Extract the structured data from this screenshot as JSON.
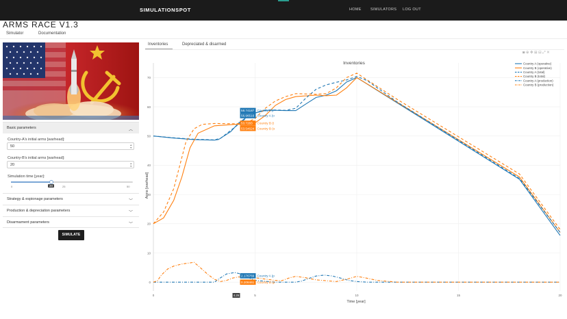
{
  "navbar": {
    "brand": "SIMULATIONSPOT",
    "links": [
      "HOME",
      "SIMULATORS",
      "LOG OUT"
    ],
    "accent_color": "#2a9d8f"
  },
  "page": {
    "title": "ARMS RACE V1.3",
    "tabs": [
      "Simulator",
      "Documentation"
    ]
  },
  "sidebar": {
    "hero_image": "flag-rocket-launch-illustration",
    "basic_header": "Basic parameters",
    "field_a_label": "Country-A's initial arms [warhead]:",
    "field_a_value": "50",
    "field_b_label": "Country-B's initial arms [warhead]:",
    "field_b_value": "20",
    "slider_label": "Simulation time [year]:",
    "slider_value": "20",
    "slider_ticks": [
      "0",
      "25",
      "50"
    ],
    "slider_fraction": 0.4,
    "sections": [
      "Strategy & espionage parameters",
      "Production & depreciation parameters",
      "Disarmament parameters"
    ],
    "simulate_label": "SIMULATE"
  },
  "chart_tabs": [
    "Inventories",
    "Depreciated & disarmed"
  ],
  "modebar_icons": [
    "camera-icon",
    "zoom-icon",
    "pan-icon",
    "zoom-in-icon",
    "zoom-out-icon",
    "autoscale-icon",
    "reset-icon"
  ],
  "chart_data": {
    "type": "line",
    "title": "Inventories",
    "xlabel": "Time [year]",
    "ylabel": "Arms [warhead]",
    "xlim": [
      0,
      20
    ],
    "ylim": [
      -3,
      75
    ],
    "xticks": [
      0,
      5,
      10,
      15,
      20
    ],
    "yticks": [
      0,
      10,
      20,
      30,
      40,
      50,
      60,
      70
    ],
    "legend": "top-right",
    "grid": true,
    "series": [
      {
        "name": "Country A (operative)",
        "color": "#1f77b4",
        "dash": "solid",
        "x": [
          0,
          1,
          2,
          3,
          3.2,
          3.8,
          4.2,
          4.8,
          5.5,
          6,
          6.5,
          7,
          7.5,
          8,
          8.5,
          9,
          9.5,
          10,
          12,
          14,
          16,
          18,
          20
        ],
        "y": [
          50,
          49.3,
          48.8,
          48.6,
          48.8,
          51.5,
          54.5,
          57.5,
          58.8,
          58.8,
          58.7,
          58.7,
          61,
          63.2,
          64,
          65.5,
          68.5,
          70,
          61.3,
          52.6,
          43.9,
          35.2,
          16
        ]
      },
      {
        "name": "Country B (operative)",
        "color": "#ff7f0e",
        "dash": "solid",
        "x": [
          0,
          0.5,
          1,
          1.4,
          1.8,
          2.2,
          3,
          4,
          4.5,
          5,
          5.5,
          6,
          6.5,
          7,
          8,
          8.5,
          9,
          9.5,
          10,
          12,
          14,
          16,
          18,
          20
        ],
        "y": [
          20,
          22,
          28,
          36,
          46,
          51,
          53.5,
          54,
          54,
          54.5,
          57,
          60.5,
          62.5,
          63.5,
          64,
          63.8,
          64,
          66.5,
          70,
          61.5,
          53,
          44.5,
          36,
          17
        ]
      },
      {
        "name": "Country A (total)",
        "color": "#1f77b4",
        "dash": "dash",
        "x": [
          0,
          1,
          2,
          3,
          3.3,
          4,
          4.8,
          5.5,
          6,
          6.5,
          7,
          7.5,
          8,
          8.5,
          9,
          9.5,
          10,
          10.5,
          12,
          14,
          16,
          18,
          20
        ],
        "y": [
          50,
          49.4,
          48.9,
          48.7,
          49.2,
          53,
          57.5,
          58.9,
          58.9,
          58.8,
          59.5,
          63,
          66,
          67.5,
          68.4,
          69.2,
          70.4,
          69,
          61.6,
          52.9,
          44.2,
          35.5,
          17
        ]
      },
      {
        "name": "Country B (total)",
        "color": "#ff7f0e",
        "dash": "dash",
        "x": [
          0,
          0.5,
          1,
          1.3,
          1.6,
          2,
          2.4,
          3,
          4,
          4.5,
          5,
          5.5,
          6,
          6.5,
          7,
          8,
          8.5,
          9,
          9.5,
          10,
          12,
          14,
          16,
          18,
          20
        ],
        "y": [
          20,
          24,
          32,
          40,
          48,
          52.5,
          54,
          54.3,
          54.2,
          54.3,
          56,
          59.5,
          62,
          63.5,
          64.5,
          64.3,
          64.5,
          66.5,
          70,
          71.5,
          62.5,
          54,
          45.5,
          37,
          18
        ]
      },
      {
        "name": "Country A (production)",
        "color": "#1f77b4",
        "dash": "dashdot",
        "x": [
          0,
          2,
          3,
          3.3,
          3.6,
          4,
          4.3,
          4.6,
          5,
          6,
          7,
          7.3,
          7.7,
          8,
          8.4,
          8.8,
          9.2,
          9.6,
          10,
          10.5,
          11,
          12,
          20
        ],
        "y": [
          0,
          0,
          0,
          1.5,
          2.8,
          3.3,
          2.8,
          1.8,
          0.6,
          0,
          0,
          0.4,
          1.4,
          2.1,
          2.4,
          2.1,
          1.4,
          0.6,
          0.2,
          0,
          0,
          0,
          0
        ]
      },
      {
        "name": "Country B (production)",
        "color": "#ff7f0e",
        "dash": "dashdot",
        "x": [
          0,
          0.2,
          0.4,
          0.7,
          1,
          1.4,
          1.7,
          2,
          2.3,
          2.7,
          3,
          3.3,
          3.6,
          3.9,
          4.2,
          5,
          6,
          6.3,
          6.7,
          7,
          7.5,
          8,
          9,
          9.6,
          10,
          10.4,
          11,
          12,
          20
        ],
        "y": [
          0,
          0.5,
          2.5,
          4.5,
          5.5,
          6.2,
          6.5,
          6.8,
          5,
          2.5,
          1,
          0.2,
          0.6,
          1.4,
          1.8,
          1.5,
          0.6,
          0.5,
          1.5,
          2,
          1.5,
          0.8,
          0.2,
          1.2,
          2,
          1.5,
          0.6,
          0,
          0
        ]
      }
    ],
    "hover": {
      "x_value": "4.26",
      "labels": [
        {
          "value": "58.74187",
          "series": "Country A (t",
          "color": "#1f77b4",
          "y": 58.74
        },
        {
          "value": "56.96516",
          "series": "Country A (o",
          "color": "#1f77b4",
          "y": 56.97
        },
        {
          "value": "53.7283",
          "series": "Country B (t",
          "color": "#ff7f0e",
          "y": 54.4
        },
        {
          "value": "53.54624",
          "series": "Country B (o",
          "color": "#ff7f0e",
          "y": 52.6
        },
        {
          "value": "2.176769",
          "series": "Country A (p",
          "color": "#1f77b4",
          "y": 2.18
        },
        {
          "value": "0.208461",
          "series": "Country B (p",
          "color": "#ff7f0e",
          "y": 0.0
        }
      ]
    }
  }
}
